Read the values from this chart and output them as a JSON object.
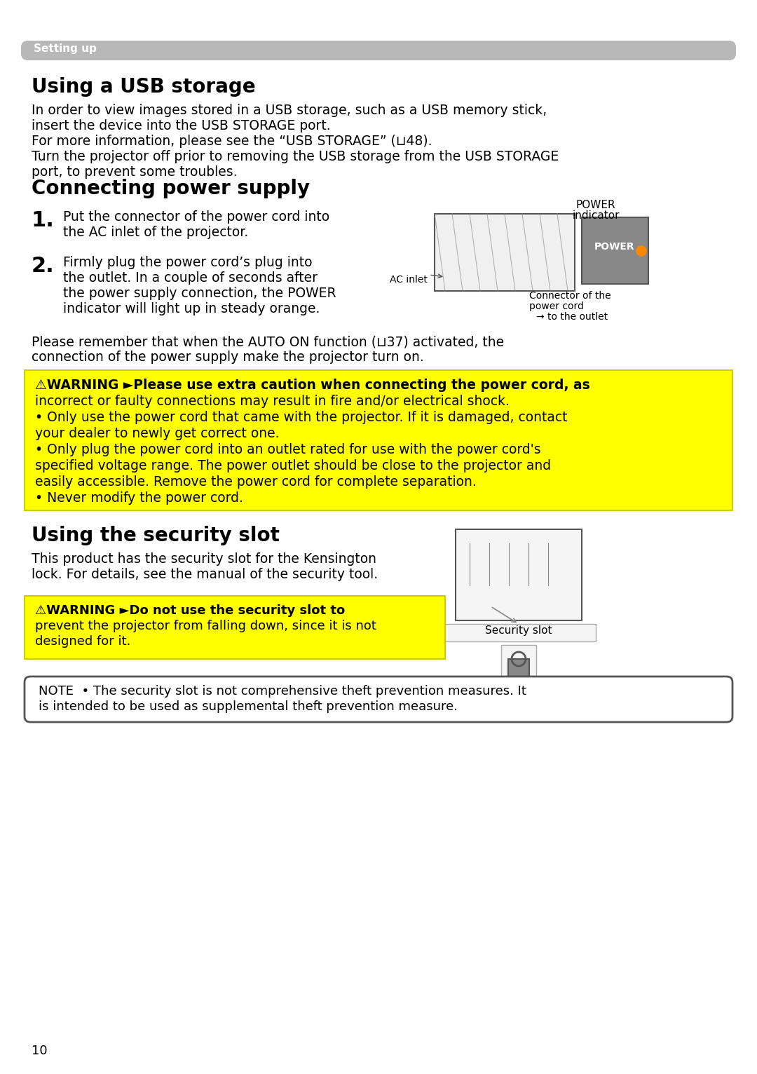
{
  "page_bg": "#ffffff",
  "header_bg": "#b0b0b0",
  "header_text": "Setting up",
  "header_text_color": "#ffffff",
  "warning_bg": "#ffff00",
  "warning_border": "#cccc00",
  "note_bg": "#ffffff",
  "note_border": "#555555",
  "section1_title": "Using a USB storage",
  "section1_body": [
    "In order to view images stored in a USB storage, such as a USB memory stick,",
    "insert the device into the USB STORAGE port.",
    "For more information, please see the “USB STORAGE” (⊔48).",
    "Turn the projector off prior to removing the USB storage from the USB STORAGE",
    "port, to prevent some troubles."
  ],
  "section2_title": "Connecting power supply",
  "step1": "Put the connector of the power cord into\nthe AC inlet of the projector.",
  "step2": "Firmly plug the power cord’s plug into\nthe outlet. In a couple of seconds after\nthe power supply connection, the POWER\nindicator will light up in steady orange.",
  "para_auto_on": "Please remember that when the AUTO ON function (⊔37) activated, the\nconnection of the power supply make the projector turn on.",
  "warning1_lines": [
    "⚠WARNING ►Please use extra caution when connecting the power cord, as",
    "incorrect or faulty connections may result in fire and/or electrical shock.",
    "• Only use the power cord that came with the projector. If it is damaged, contact",
    "your dealer to newly get correct one.",
    "• Only plug the power cord into an outlet rated for use with the power cord's",
    "specified voltage range. The power outlet should be close to the projector and",
    "easily accessible. Remove the power cord for complete separation.",
    "• Never modify the power cord."
  ],
  "section3_title": "Using the security slot",
  "section3_body": [
    "This product has the security slot for the Kensington",
    "lock. For details, see the manual of the security tool."
  ],
  "warning2_lines": [
    "⚠WARNING ►Do not use the security slot to",
    "prevent the projector from falling down, since it is not",
    "designed for it."
  ],
  "note_lines": [
    "NOTE  • The security slot is not comprehensive theft prevention measures. It",
    "is intended to be used as supplemental theft prevention measure."
  ],
  "page_number": "10",
  "title_color": "#000000",
  "body_color": "#000000",
  "warning_text_color": "#000000"
}
